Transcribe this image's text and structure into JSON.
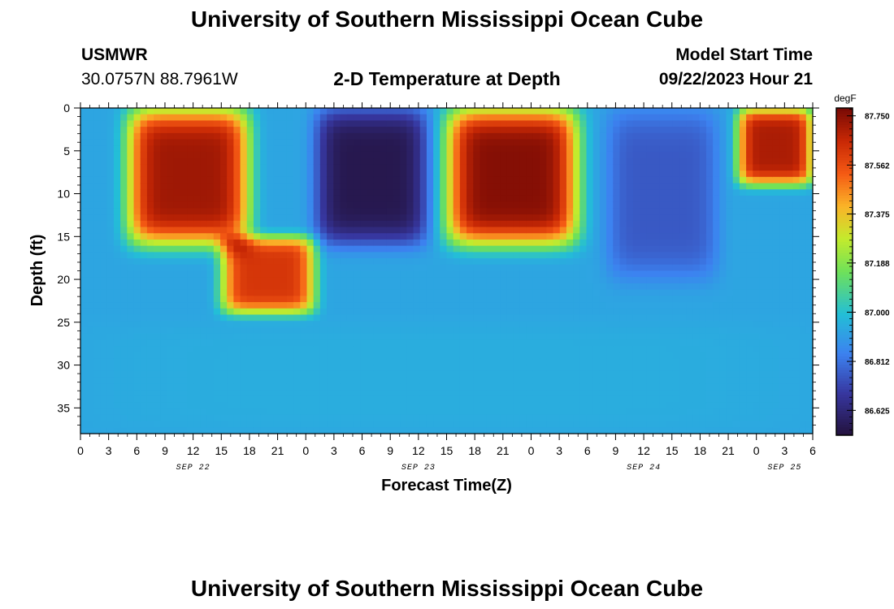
{
  "header": {
    "title": "University of Southern Mississippi Ocean Cube",
    "station": "USMWR",
    "coords": "30.0757N  88.7961W",
    "subtitle": "2-D Temperature at Depth",
    "model_start_label": "Model Start Time",
    "model_start_value": "09/22/2023 Hour 21"
  },
  "footer": {
    "title": "University of Southern Mississippi Ocean Cube"
  },
  "chart_data": {
    "type": "heatmap",
    "title": "2-D Temperature at Depth",
    "xlabel": "Forecast Time(Z)",
    "ylabel": "Depth (ft)",
    "x_unit": "hours from 2023-09-22 00Z",
    "x_range": [
      0,
      78
    ],
    "y_range": [
      0,
      38
    ],
    "y_inverted": true,
    "x_tick_labels": [
      "0",
      "3",
      "6",
      "9",
      "12",
      "15",
      "18",
      "21",
      "0",
      "3",
      "6",
      "9",
      "12",
      "15",
      "18",
      "21",
      "0",
      "3",
      "6",
      "9",
      "12",
      "15",
      "18",
      "21",
      "0",
      "3",
      "6"
    ],
    "y_tick_labels": [
      "0",
      "5",
      "10",
      "15",
      "20",
      "25",
      "30",
      "35"
    ],
    "date_labels": [
      {
        "label": "SEP 22",
        "hour": 12
      },
      {
        "label": "SEP 23",
        "hour": 36
      },
      {
        "label": "SEP 24",
        "hour": 60
      },
      {
        "label": "SEP 25",
        "hour": 75
      }
    ],
    "colorbar": {
      "unit": "degF",
      "min": 86.53,
      "max": 87.78,
      "tick_labels": [
        "87.750",
        "87.562",
        "87.375",
        "87.188",
        "87.000",
        "86.812",
        "86.625"
      ],
      "tick_values": [
        87.75,
        87.562,
        87.375,
        87.188,
        87.0,
        86.812,
        86.625
      ]
    },
    "features": [
      {
        "name": "warm core",
        "t_start": 5,
        "t_end": 18,
        "depth_top": 0,
        "depth_bottom": 16,
        "temp": 87.72
      },
      {
        "name": "warm tongue",
        "t_start": 15,
        "t_end": 25,
        "depth_top": 15,
        "depth_bottom": 24,
        "temp": 87.62
      },
      {
        "name": "cold core",
        "t_start": 25,
        "t_end": 37,
        "depth_top": 0,
        "depth_bottom": 16,
        "temp": 86.56
      },
      {
        "name": "warm core",
        "t_start": 39,
        "t_end": 53,
        "depth_top": 0,
        "depth_bottom": 16,
        "temp": 87.76
      },
      {
        "name": "cool core",
        "t_start": 56,
        "t_end": 68,
        "depth_top": 0,
        "depth_bottom": 20,
        "temp": 86.76
      },
      {
        "name": "warm core",
        "t_start": 70,
        "t_end": 78,
        "depth_top": 0,
        "depth_bottom": 9,
        "temp": 87.7
      },
      {
        "name": "bottom layer",
        "t_start": 0,
        "t_end": 78,
        "depth_top": 25,
        "depth_bottom": 38,
        "temp": 86.95
      }
    ]
  }
}
